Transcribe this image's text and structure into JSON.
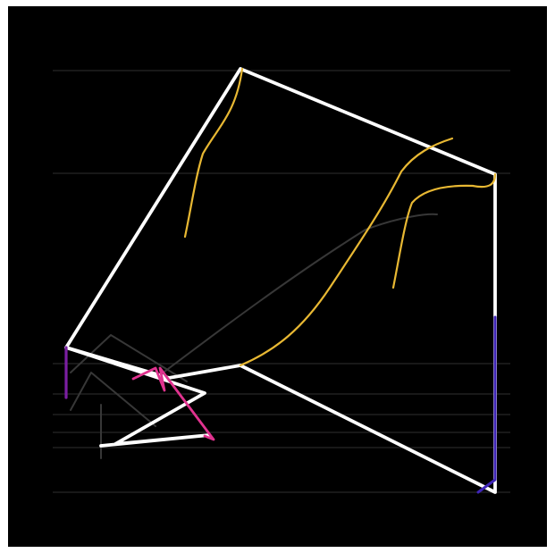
{
  "diagram": {
    "background": "#000000",
    "frame": "#ffffff",
    "gridline_color": "#2a2a2a",
    "gridline_count": 8,
    "colors": {
      "white": "#ffffff",
      "gold": "#e8b833",
      "gray": "#3a3a3a",
      "magenta": "#e0338f",
      "violet": "#7b1fa2",
      "blue": "#3f25b8"
    },
    "strokes": [
      {
        "name": "white-main-outline",
        "color": "white"
      },
      {
        "name": "white-inner-zigzag",
        "color": "white"
      },
      {
        "name": "gold-left-curve",
        "color": "gold"
      },
      {
        "name": "gold-main-curve",
        "color": "gold"
      },
      {
        "name": "gold-right-curve",
        "color": "gold"
      },
      {
        "name": "gray-long-curve",
        "color": "gray"
      },
      {
        "name": "gray-small-zigzag",
        "color": "gray"
      },
      {
        "name": "magenta-zigzag",
        "color": "magenta"
      },
      {
        "name": "violet-left-segment",
        "color": "violet"
      },
      {
        "name": "blue-right-segment",
        "color": "blue"
      }
    ]
  }
}
